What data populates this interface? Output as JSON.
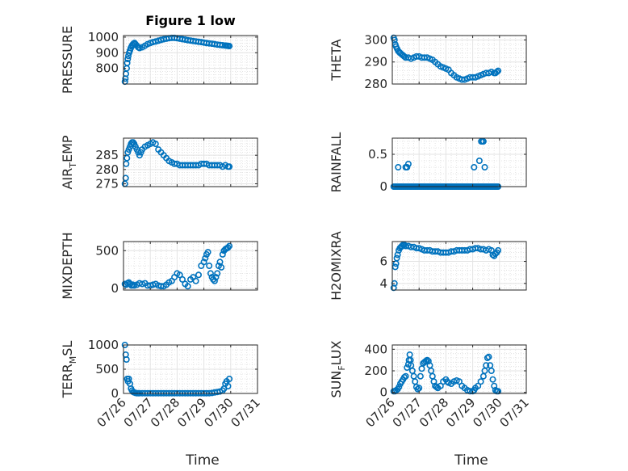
{
  "figure": {
    "title": "Figure 1 low",
    "marker_color": "#0072BD",
    "grid_color": "#dcdcdc",
    "axis_color": "#262626"
  },
  "chart_data": [
    {
      "id": "pressure",
      "type": "scatter",
      "title": "Figure 1 low",
      "ylabel_parts": [
        "PRESSURE"
      ],
      "xlim": [
        0,
        5
      ],
      "ylim": [
        700,
        1010
      ],
      "yticks": [
        800,
        900,
        1000
      ],
      "yticklabels": [
        "800",
        "900",
        "1000"
      ],
      "xticks": [
        0,
        1,
        2,
        3,
        4,
        5
      ],
      "xticklabels": [],
      "x": [
        0.05,
        0.07,
        0.09,
        0.12,
        0.14,
        0.16,
        0.18,
        0.21,
        0.24,
        0.27,
        0.3,
        0.33,
        0.37,
        0.41,
        0.45,
        0.5,
        0.55,
        0.6,
        0.7,
        0.8,
        0.9,
        1.0,
        1.1,
        1.2,
        1.3,
        1.4,
        1.5,
        1.6,
        1.7,
        1.8,
        1.9,
        2.0,
        2.1,
        2.2,
        2.3,
        2.4,
        2.5,
        2.6,
        2.7,
        2.8,
        2.9,
        3.0,
        3.1,
        3.2,
        3.3,
        3.4,
        3.5,
        3.6,
        3.7,
        3.8,
        3.85,
        3.9,
        3.95
      ],
      "y": [
        715,
        735,
        765,
        800,
        835,
        860,
        880,
        900,
        915,
        930,
        940,
        950,
        958,
        963,
        955,
        945,
        935,
        930,
        935,
        945,
        955,
        962,
        968,
        972,
        977,
        982,
        986,
        990,
        993,
        995,
        995,
        993,
        990,
        987,
        984,
        980,
        978,
        975,
        973,
        970,
        968,
        965,
        962,
        960,
        958,
        955,
        952,
        950,
        948,
        946,
        945,
        944,
        943
      ]
    },
    {
      "id": "theta",
      "type": "scatter",
      "ylabel_parts": [
        "THETA"
      ],
      "xlim": [
        0,
        5
      ],
      "ylim": [
        280,
        302
      ],
      "yticks": [
        280,
        290,
        300
      ],
      "yticklabels": [
        "280",
        "290",
        "300"
      ],
      "xticks": [
        0,
        1,
        2,
        3,
        4,
        5
      ],
      "xticklabels": [],
      "x": [
        0.05,
        0.08,
        0.11,
        0.14,
        0.18,
        0.22,
        0.26,
        0.3,
        0.35,
        0.4,
        0.45,
        0.5,
        0.6,
        0.7,
        0.8,
        0.9,
        1.0,
        1.1,
        1.2,
        1.3,
        1.4,
        1.5,
        1.6,
        1.7,
        1.8,
        1.9,
        2.0,
        2.1,
        2.2,
        2.3,
        2.4,
        2.5,
        2.6,
        2.7,
        2.8,
        2.9,
        3.0,
        3.1,
        3.2,
        3.3,
        3.4,
        3.5,
        3.6,
        3.7,
        3.8,
        3.85,
        3.9,
        3.95
      ],
      "y": [
        301,
        300,
        298,
        297,
        296,
        295,
        294.5,
        294,
        293.5,
        293,
        292.5,
        292,
        292,
        291.5,
        292,
        292.5,
        292.5,
        292,
        292,
        292,
        291.5,
        291,
        290,
        289,
        288,
        287.5,
        287,
        286.5,
        285,
        284,
        283,
        282.5,
        282,
        282,
        282.5,
        283,
        283,
        283,
        283.5,
        284,
        284.5,
        285,
        285,
        285.5,
        285,
        285,
        285.5,
        286
      ]
    },
    {
      "id": "air_temp",
      "type": "scatter",
      "ylabel_parts": [
        "AIR",
        "T",
        "EMP"
      ],
      "xlim": [
        0,
        5
      ],
      "ylim": [
        274,
        291
      ],
      "yticks": [
        275,
        280,
        285
      ],
      "yticklabels": [
        "275",
        "280",
        "285"
      ],
      "xticks": [
        0,
        1,
        2,
        3,
        4,
        5
      ],
      "xticklabels": [],
      "x": [
        0.05,
        0.08,
        0.1,
        0.13,
        0.16,
        0.2,
        0.24,
        0.28,
        0.32,
        0.36,
        0.4,
        0.45,
        0.5,
        0.55,
        0.6,
        0.65,
        0.7,
        0.8,
        0.9,
        1.0,
        1.1,
        1.2,
        1.3,
        1.4,
        1.5,
        1.6,
        1.7,
        1.8,
        1.9,
        2.0,
        2.1,
        2.2,
        2.3,
        2.4,
        2.5,
        2.6,
        2.7,
        2.8,
        2.9,
        3.0,
        3.1,
        3.2,
        3.3,
        3.4,
        3.5,
        3.6,
        3.7,
        3.8,
        3.9,
        3.95
      ],
      "y": [
        275,
        277,
        282,
        284,
        286,
        287,
        288,
        289,
        289.5,
        289.5,
        289,
        288,
        287,
        286,
        285,
        286,
        287,
        288,
        288.5,
        289,
        289.5,
        289,
        287,
        286,
        285,
        284,
        283,
        282.5,
        282,
        282,
        281.5,
        281.5,
        281.5,
        281.5,
        281.5,
        281.5,
        281.5,
        281.5,
        282,
        282,
        282,
        281.5,
        281.5,
        281.5,
        281.5,
        281.5,
        281,
        281.5,
        281,
        281
      ]
    },
    {
      "id": "rainfall",
      "type": "scatter",
      "ylabel_parts": [
        "RAINFALL"
      ],
      "xlim": [
        0,
        5
      ],
      "ylim": [
        0,
        0.75
      ],
      "yticks": [
        0,
        0.5
      ],
      "yticklabels": [
        "0",
        "0.5"
      ],
      "xticks": [
        0,
        1,
        2,
        3,
        4,
        5
      ],
      "xticklabels": [],
      "x": [
        0.05,
        0.1,
        0.15,
        0.2,
        0.25,
        0.3,
        0.35,
        0.4,
        0.45,
        0.5,
        0.55,
        0.6,
        0.65,
        0.7,
        0.75,
        0.8,
        0.85,
        0.9,
        0.95,
        1.0,
        1.05,
        1.1,
        1.15,
        1.2,
        1.25,
        1.3,
        1.35,
        1.4,
        1.45,
        1.5,
        1.55,
        1.6,
        1.65,
        1.7,
        1.75,
        1.8,
        1.85,
        1.9,
        1.95,
        2.0,
        2.05,
        2.1,
        2.15,
        2.2,
        2.25,
        2.3,
        2.35,
        2.4,
        2.45,
        2.5,
        2.55,
        2.6,
        2.65,
        2.7,
        2.75,
        2.8,
        2.85,
        2.9,
        2.95,
        3.0,
        3.05,
        3.1,
        3.15,
        3.2,
        3.25,
        3.3,
        3.35,
        3.4,
        3.45,
        3.5,
        3.55,
        3.6,
        3.65,
        3.7,
        3.75,
        3.8,
        3.85,
        3.9,
        3.95,
        0.22,
        0.5,
        0.55,
        0.6,
        3.05,
        3.25,
        3.32,
        3.37,
        3.4,
        3.45
      ],
      "y": [
        0,
        0,
        0,
        0,
        0,
        0,
        0,
        0,
        0,
        0,
        0,
        0,
        0,
        0,
        0,
        0,
        0,
        0,
        0,
        0,
        0,
        0,
        0,
        0,
        0,
        0,
        0,
        0,
        0,
        0,
        0,
        0,
        0,
        0,
        0,
        0,
        0,
        0,
        0,
        0,
        0,
        0,
        0,
        0,
        0,
        0,
        0,
        0,
        0,
        0,
        0,
        0,
        0,
        0,
        0,
        0,
        0,
        0,
        0,
        0,
        0,
        0,
        0,
        0,
        0,
        0,
        0,
        0,
        0,
        0,
        0,
        0,
        0,
        0,
        0,
        0,
        0,
        0,
        0,
        0.3,
        0.3,
        0.3,
        0.35,
        0.3,
        0.4,
        0.7,
        0.7,
        0.7,
        0.3
      ]
    },
    {
      "id": "mixdepth",
      "type": "scatter",
      "ylabel_parts": [
        "MIXDEPTH"
      ],
      "xlim": [
        0,
        5
      ],
      "ylim": [
        -20,
        620
      ],
      "yticks": [
        0,
        500
      ],
      "yticklabels": [
        "0",
        "500"
      ],
      "xticks": [
        0,
        1,
        2,
        3,
        4,
        5
      ],
      "xticklabels": [],
      "x": [
        0.05,
        0.1,
        0.15,
        0.2,
        0.25,
        0.3,
        0.35,
        0.4,
        0.5,
        0.6,
        0.7,
        0.8,
        0.9,
        1.0,
        1.1,
        1.2,
        1.3,
        1.4,
        1.5,
        1.6,
        1.7,
        1.8,
        1.9,
        2.0,
        2.1,
        2.2,
        2.3,
        2.4,
        2.5,
        2.6,
        2.7,
        2.8,
        2.9,
        3.0,
        3.05,
        3.1,
        3.15,
        3.2,
        3.25,
        3.3,
        3.35,
        3.4,
        3.45,
        3.5,
        3.55,
        3.6,
        3.65,
        3.7,
        3.75,
        3.8,
        3.85,
        3.9,
        3.95
      ],
      "y": [
        60,
        50,
        70,
        80,
        60,
        40,
        50,
        40,
        50,
        70,
        60,
        70,
        40,
        40,
        50,
        60,
        40,
        30,
        30,
        50,
        80,
        100,
        150,
        200,
        180,
        120,
        60,
        30,
        120,
        150,
        100,
        180,
        300,
        350,
        400,
        450,
        480,
        300,
        200,
        150,
        120,
        100,
        150,
        200,
        300,
        350,
        280,
        450,
        500,
        520,
        530,
        540,
        560
      ]
    },
    {
      "id": "h2omixra",
      "type": "scatter",
      "ylabel_parts": [
        "H2OMIXRA"
      ],
      "xlim": [
        0,
        5
      ],
      "ylim": [
        3.4,
        7.8
      ],
      "yticks": [
        4,
        6
      ],
      "yticklabels": [
        "4",
        "6"
      ],
      "xticks": [
        0,
        1,
        2,
        3,
        4,
        5
      ],
      "xticklabels": [],
      "x": [
        0.05,
        0.08,
        0.11,
        0.14,
        0.17,
        0.2,
        0.24,
        0.28,
        0.32,
        0.36,
        0.4,
        0.45,
        0.5,
        0.6,
        0.7,
        0.8,
        0.9,
        1.0,
        1.1,
        1.2,
        1.3,
        1.4,
        1.5,
        1.6,
        1.7,
        1.8,
        1.9,
        2.0,
        2.1,
        2.2,
        2.3,
        2.4,
        2.5,
        2.6,
        2.7,
        2.8,
        2.9,
        3.0,
        3.1,
        3.2,
        3.3,
        3.4,
        3.5,
        3.6,
        3.7,
        3.75,
        3.8,
        3.85,
        3.9,
        3.95
      ],
      "y": [
        3.6,
        4.0,
        5.5,
        5.8,
        6.3,
        6.6,
        7.0,
        7.2,
        7.3,
        7.4,
        7.5,
        7.5,
        7.4,
        7.4,
        7.3,
        7.3,
        7.2,
        7.2,
        7.1,
        7.0,
        7.0,
        7.0,
        6.9,
        6.9,
        6.9,
        6.8,
        6.8,
        6.8,
        6.8,
        6.9,
        6.9,
        7.0,
        7.0,
        7.0,
        7.0,
        7.0,
        7.1,
        7.1,
        7.2,
        7.2,
        7.1,
        7.1,
        7.0,
        7.1,
        7.0,
        6.6,
        6.5,
        6.7,
        6.8,
        7.0
      ]
    },
    {
      "id": "terr_msl",
      "type": "scatter",
      "ylabel_parts": [
        "TERR",
        "M",
        "SL"
      ],
      "xlim": [
        0,
        5
      ],
      "ylim": [
        0,
        1000
      ],
      "yticks": [
        0,
        500,
        1000
      ],
      "yticklabels": [
        "0",
        "500",
        "1000"
      ],
      "xticks": [
        0,
        1,
        2,
        3,
        4,
        5
      ],
      "xticklabels": [
        "07/26",
        "07/27",
        "07/28",
        "07/29",
        "07/30",
        "07/31"
      ],
      "xlabel": "Time",
      "x": [
        0.05,
        0.08,
        0.11,
        0.14,
        0.17,
        0.2,
        0.24,
        0.28,
        0.32,
        0.36,
        0.4,
        0.45,
        0.5,
        0.55,
        0.6,
        0.7,
        0.8,
        0.9,
        1.0,
        1.1,
        1.2,
        1.3,
        1.4,
        1.5,
        1.6,
        1.7,
        1.8,
        1.9,
        2.0,
        2.1,
        2.2,
        2.3,
        2.4,
        2.5,
        2.6,
        2.7,
        2.8,
        2.9,
        3.0,
        3.1,
        3.2,
        3.3,
        3.4,
        3.5,
        3.6,
        3.7,
        3.75,
        3.8,
        3.85,
        3.9,
        3.95
      ],
      "y": [
        1000,
        800,
        700,
        300,
        250,
        300,
        200,
        100,
        60,
        30,
        20,
        10,
        5,
        5,
        5,
        5,
        5,
        5,
        5,
        5,
        5,
        5,
        5,
        5,
        5,
        5,
        5,
        5,
        5,
        5,
        5,
        5,
        5,
        5,
        5,
        5,
        5,
        5,
        5,
        5,
        5,
        10,
        20,
        30,
        40,
        60,
        100,
        200,
        250,
        150,
        300
      ]
    },
    {
      "id": "sun_flux",
      "type": "scatter",
      "ylabel_parts": [
        "SUN",
        "F",
        "LUX"
      ],
      "xlim": [
        0,
        5
      ],
      "ylim": [
        -10,
        440
      ],
      "yticks": [
        0,
        200,
        400
      ],
      "yticklabels": [
        "0",
        "200",
        "400"
      ],
      "xticks": [
        0,
        1,
        2,
        3,
        4,
        5
      ],
      "xticklabels": [
        "07/26",
        "07/27",
        "07/28",
        "07/29",
        "07/30",
        "07/31"
      ],
      "xlabel": "Time",
      "x": [
        0.05,
        0.1,
        0.15,
        0.2,
        0.25,
        0.3,
        0.35,
        0.4,
        0.45,
        0.5,
        0.55,
        0.6,
        0.62,
        0.65,
        0.68,
        0.7,
        0.75,
        0.8,
        0.85,
        0.9,
        0.95,
        1.0,
        1.05,
        1.1,
        1.15,
        1.2,
        1.25,
        1.3,
        1.35,
        1.4,
        1.45,
        1.5,
        1.55,
        1.6,
        1.65,
        1.7,
        1.8,
        1.9,
        2.0,
        2.05,
        2.1,
        2.2,
        2.3,
        2.4,
        2.5,
        2.6,
        2.7,
        2.8,
        2.9,
        3.0,
        3.05,
        3.1,
        3.2,
        3.3,
        3.4,
        3.45,
        3.5,
        3.55,
        3.6,
        3.65,
        3.7,
        3.75,
        3.8,
        3.85,
        3.9,
        3.95
      ],
      "y": [
        10,
        10,
        20,
        30,
        50,
        80,
        100,
        120,
        140,
        150,
        230,
        260,
        300,
        350,
        300,
        250,
        200,
        150,
        100,
        50,
        30,
        40,
        150,
        220,
        270,
        280,
        290,
        300,
        290,
        250,
        200,
        150,
        100,
        60,
        50,
        40,
        60,
        100,
        120,
        100,
        90,
        80,
        100,
        110,
        100,
        60,
        40,
        20,
        10,
        10,
        20,
        40,
        60,
        100,
        150,
        200,
        250,
        320,
        330,
        250,
        200,
        120,
        60,
        20,
        10,
        10
      ]
    }
  ]
}
